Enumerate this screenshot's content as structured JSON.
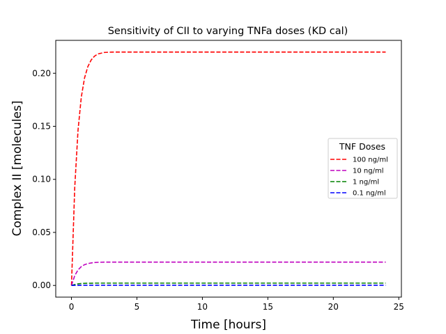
{
  "chart_data": {
    "type": "line",
    "title": "Sensitivity of CII to varying TNFa doses (KD cal)",
    "xlabel": "Time [hours]",
    "ylabel": "Complex II [molecules]",
    "xlim": [
      -1.2,
      25.2
    ],
    "ylim": [
      -0.011,
      0.231
    ],
    "x_ticks": [
      0,
      5,
      10,
      15,
      20,
      25
    ],
    "x_tick_labels": [
      "0",
      "5",
      "10",
      "15",
      "20",
      "25"
    ],
    "y_ticks": [
      0.0,
      0.05,
      0.1,
      0.15,
      0.2
    ],
    "y_tick_labels": [
      "0.00",
      "0.05",
      "0.10",
      "0.15",
      "0.20"
    ],
    "grid": false,
    "legend": {
      "title": "TNF Doses",
      "placement": "center-right"
    },
    "x": [
      0,
      0.25,
      0.5,
      0.75,
      1,
      1.25,
      1.5,
      1.75,
      2,
      2.5,
      3,
      3.5,
      4,
      5,
      6,
      8,
      10,
      12,
      15,
      18,
      20,
      22,
      24
    ],
    "series": [
      {
        "name": "100 ng/ml",
        "color": "#ff0000",
        "values": [
          0,
          0.0923,
          0.1461,
          0.1774,
          0.1956,
          0.2062,
          0.2124,
          0.216,
          0.2181,
          0.2196,
          0.2199,
          0.22,
          0.22,
          0.22,
          0.22,
          0.22,
          0.22,
          0.22,
          0.22,
          0.22,
          0.22,
          0.22,
          0.22
        ]
      },
      {
        "name": "10 ng/ml",
        "color": "#bf00bf",
        "values": [
          0,
          0.0092,
          0.0146,
          0.0177,
          0.0196,
          0.0206,
          0.0212,
          0.0216,
          0.0218,
          0.022,
          0.022,
          0.022,
          0.022,
          0.022,
          0.022,
          0.022,
          0.022,
          0.022,
          0.022,
          0.022,
          0.022,
          0.022,
          0.022
        ]
      },
      {
        "name": "1 ng/ml",
        "color": "#008000",
        "values": [
          0,
          0.0009,
          0.0015,
          0.0018,
          0.002,
          0.0021,
          0.0021,
          0.0022,
          0.0022,
          0.0022,
          0.0022,
          0.0022,
          0.0022,
          0.0022,
          0.0022,
          0.0022,
          0.0022,
          0.0022,
          0.0022,
          0.0022,
          0.0022,
          0.0022,
          0.0022
        ]
      },
      {
        "name": "0.1 ng/ml",
        "color": "#0000ff",
        "values": [
          0,
          0.0001,
          0.0001,
          0.0002,
          0.0002,
          0.0002,
          0.0002,
          0.0002,
          0.0002,
          0.0002,
          0.0002,
          0.0002,
          0.0002,
          0.0002,
          0.0002,
          0.0002,
          0.0002,
          0.0002,
          0.0002,
          0.0002,
          0.0002,
          0.0002,
          0.0002
        ]
      }
    ]
  }
}
